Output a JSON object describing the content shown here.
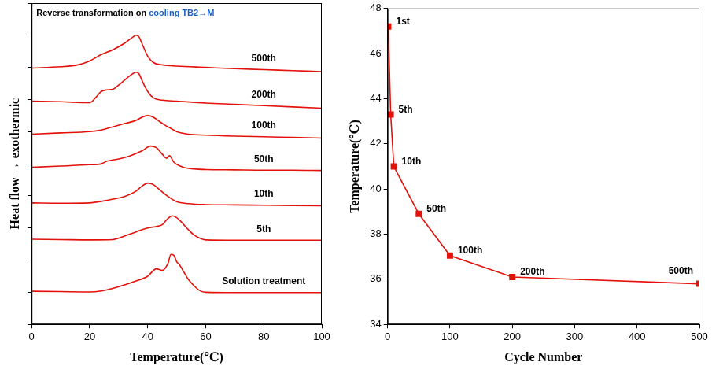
{
  "chart_data": [
    {
      "type": "line",
      "title": "Reverse transformation on cooling TB2→M",
      "x_label": "Temperature(℃)",
      "y_label": "Heat flow → exothermic",
      "xlim": [
        0,
        100
      ],
      "xticks": [
        0,
        20,
        40,
        60,
        80,
        100
      ],
      "ylim": [
        0,
        100
      ],
      "yticks": [
        0,
        10,
        20,
        30,
        40,
        50,
        60,
        70,
        80,
        90,
        100
      ],
      "tick_labels": "x",
      "grid": false,
      "marker": "none",
      "color": "#e3120b",
      "series": [
        {
          "name": "500th",
          "x": [
            0,
            10,
            16,
            20,
            24,
            28,
            32,
            35,
            36,
            37,
            38,
            40,
            42,
            45,
            50,
            60,
            70,
            80,
            90,
            100
          ],
          "values": [
            79.8,
            80.2,
            80.8,
            82,
            84,
            85.5,
            87.5,
            89.5,
            90,
            89.5,
            87.5,
            83.5,
            81.5,
            80.8,
            80.4,
            80,
            79.6,
            79.3,
            79,
            78.7
          ]
        },
        {
          "name": "200th",
          "x": [
            0,
            10,
            20,
            22,
            24,
            26,
            28,
            30,
            32,
            34,
            36,
            37,
            38,
            40,
            42,
            45,
            50,
            60,
            70,
            80,
            90,
            100
          ],
          "values": [
            69.5,
            69.3,
            69,
            70.5,
            72.5,
            73,
            73.2,
            74.5,
            76,
            77.5,
            78.5,
            78,
            76,
            72.5,
            70.5,
            69.8,
            69.5,
            68.9,
            68.5,
            68.1,
            67.7,
            67.3
          ]
        },
        {
          "name": "100th",
          "x": [
            0,
            10,
            20,
            24,
            28,
            32,
            36,
            38,
            40,
            42,
            44,
            46,
            48,
            50,
            54,
            60,
            70,
            80,
            90,
            100
          ],
          "values": [
            59.2,
            59.6,
            60,
            60.5,
            61.5,
            62.5,
            63.5,
            64.5,
            65,
            64.5,
            63.2,
            62,
            61,
            60,
            59.2,
            58.9,
            58.6,
            58.4,
            58.2,
            58
          ]
        },
        {
          "name": "50th",
          "x": [
            0,
            10,
            20,
            24,
            26,
            30,
            34,
            38,
            41,
            43,
            45,
            46.5,
            47.5,
            49,
            52,
            56,
            60,
            70,
            80,
            90,
            100
          ],
          "values": [
            48.9,
            49.3,
            49.7,
            50,
            50.8,
            51.5,
            52.5,
            54,
            55.5,
            55,
            53,
            51.7,
            52.5,
            50.5,
            49,
            48.4,
            48.2,
            48.1,
            48,
            48,
            47.9
          ]
        },
        {
          "name": "10th",
          "x": [
            0,
            10,
            20,
            24,
            28,
            32,
            36,
            38,
            40,
            42,
            44,
            46,
            48,
            50,
            54,
            60,
            70,
            80,
            90,
            100
          ],
          "values": [
            37.8,
            37.7,
            37.8,
            38.3,
            39,
            39.8,
            41.5,
            43,
            44,
            43.5,
            42,
            40.5,
            39.2,
            38.2,
            37.6,
            37.3,
            37.2,
            37.1,
            37,
            36.9
          ]
        },
        {
          "name": "5th",
          "x": [
            0,
            10,
            20,
            28,
            32,
            36,
            40,
            43,
            45,
            47,
            48.5,
            50,
            52,
            54,
            56,
            58,
            60,
            70,
            80,
            90,
            100
          ],
          "values": [
            26.5,
            26.4,
            26.3,
            26.4,
            27.5,
            28.8,
            30,
            30.5,
            31,
            33,
            33.8,
            33.2,
            31.5,
            29.5,
            27.8,
            26.8,
            26.3,
            26.2,
            26.2,
            26.2,
            26.2
          ]
        },
        {
          "name": "Solution treatment",
          "x": [
            0,
            10,
            20,
            24,
            28,
            32,
            36,
            40,
            43,
            45,
            47,
            48,
            49,
            50,
            51,
            52,
            53,
            54,
            56,
            58,
            60,
            70,
            80,
            90,
            100
          ],
          "values": [
            10.3,
            10.2,
            10.1,
            10.4,
            11.2,
            12.3,
            13.5,
            15,
            17.3,
            16.8,
            19,
            21.8,
            21.5,
            19.5,
            18.5,
            17,
            15.5,
            14,
            12,
            10.5,
            10,
            9.9,
            9.9,
            9.9,
            9.9
          ]
        }
      ]
    },
    {
      "type": "line",
      "x_label": "Cycle Number",
      "y_label": "Temperature(℃)",
      "xlim": [
        0,
        500
      ],
      "xticks": [
        0,
        100,
        200,
        300,
        400,
        500
      ],
      "ylim": [
        34,
        48
      ],
      "yticks": [
        34,
        36,
        38,
        40,
        42,
        44,
        46,
        48
      ],
      "grid": false,
      "marker": "square",
      "color": "#e3120b",
      "series": [
        {
          "x": [
            1,
            5,
            10,
            50,
            100,
            200,
            500
          ],
          "values": [
            47.2,
            43.3,
            41.0,
            38.9,
            37.05,
            36.1,
            35.8
          ],
          "point_labels": [
            "1st",
            "5th",
            "10th",
            "50th",
            "100th",
            "200th",
            "500th"
          ]
        }
      ]
    }
  ]
}
